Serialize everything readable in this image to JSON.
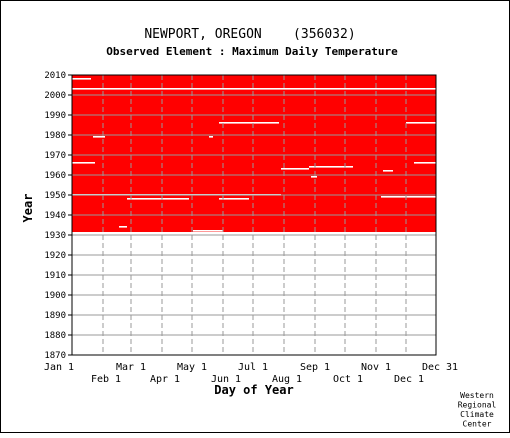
{
  "chart_data": {
    "type": "heatmap",
    "title": "NEWPORT, OREGON    (356032)",
    "subtitle": "Observed Element : Maximum Daily Temperature",
    "xlabel": "Day of Year",
    "ylabel": "Year",
    "credit": [
      "Western",
      "Regional",
      "Climate",
      "Center"
    ],
    "xlim": [
      1,
      365
    ],
    "ylim": [
      1870,
      2010
    ],
    "y_ticks": [
      1870,
      1880,
      1890,
      1900,
      1910,
      1920,
      1930,
      1940,
      1950,
      1960,
      1970,
      1980,
      1990,
      2000,
      2010
    ],
    "x_ticks_top_row": [
      {
        "label": "Jan 1",
        "day": 1
      },
      {
        "label": "Mar 1",
        "day": 60
      },
      {
        "label": "May 1",
        "day": 121
      },
      {
        "label": "Jul 1",
        "day": 182
      },
      {
        "label": "Sep 1",
        "day": 244
      },
      {
        "label": "Nov 1",
        "day": 305
      },
      {
        "label": "Dec 31",
        "day": 365
      }
    ],
    "x_ticks_bottom_row": [
      {
        "label": "Feb 1",
        "day": 32
      },
      {
        "label": "Apr 1",
        "day": 91
      },
      {
        "label": "Jun 1",
        "day": 152
      },
      {
        "label": "Aug 1",
        "day": 213
      },
      {
        "label": "Oct 1",
        "day": 274
      },
      {
        "label": "Dec 1",
        "day": 335
      }
    ],
    "data_color": "#ff0000",
    "grid": true,
    "record_period": [
      1931,
      2010
    ],
    "missing_segments": [
      {
        "year": 1931,
        "start_day": 1,
        "end_day": 365
      },
      {
        "year": 1932,
        "start_day": 122,
        "end_day": 152
      },
      {
        "year": 1934,
        "start_day": 48,
        "end_day": 56
      },
      {
        "year": 1948,
        "start_day": 56,
        "end_day": 118
      },
      {
        "year": 1948,
        "start_day": 148,
        "end_day": 178
      },
      {
        "year": 1949,
        "start_day": 310,
        "end_day": 365
      },
      {
        "year": 1950,
        "start_day": 1,
        "end_day": 210
      },
      {
        "year": 1959,
        "start_day": 240,
        "end_day": 246
      },
      {
        "year": 1962,
        "start_day": 312,
        "end_day": 322
      },
      {
        "year": 1963,
        "start_day": 210,
        "end_day": 238
      },
      {
        "year": 1964,
        "start_day": 238,
        "end_day": 282
      },
      {
        "year": 1966,
        "start_day": 1,
        "end_day": 24
      },
      {
        "year": 1966,
        "start_day": 343,
        "end_day": 365
      },
      {
        "year": 1979,
        "start_day": 22,
        "end_day": 34
      },
      {
        "year": 1979,
        "start_day": 138,
        "end_day": 142
      },
      {
        "year": 1986,
        "start_day": 148,
        "end_day": 208
      },
      {
        "year": 1986,
        "start_day": 335,
        "end_day": 365
      },
      {
        "year": 2003,
        "start_day": 1,
        "end_day": 365
      },
      {
        "year": 2008,
        "start_day": 1,
        "end_day": 20
      }
    ]
  }
}
